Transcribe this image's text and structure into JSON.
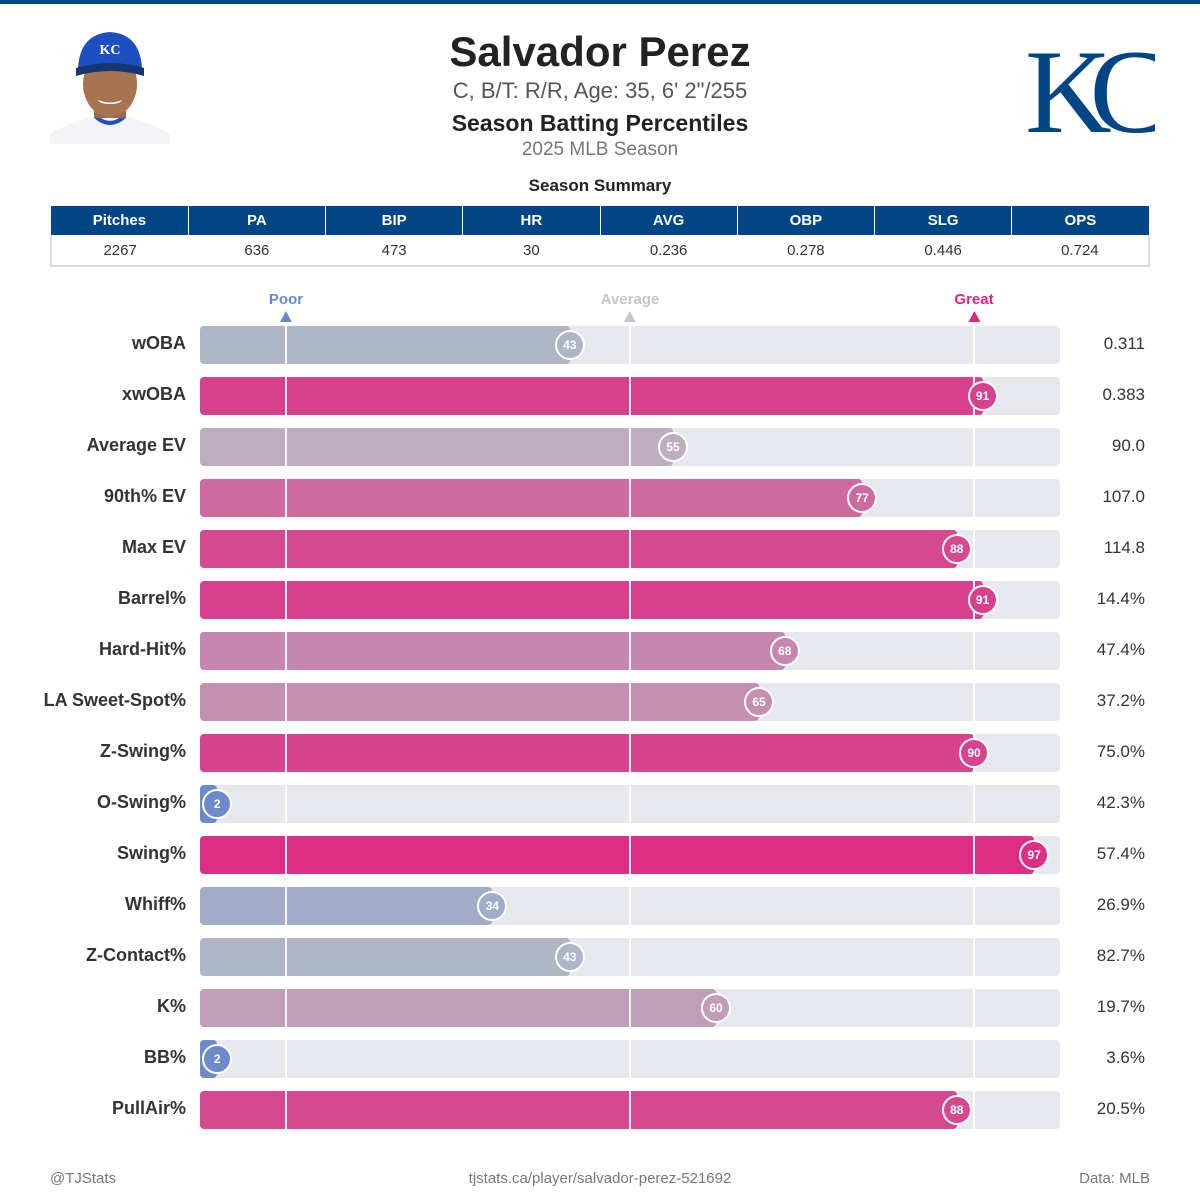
{
  "header": {
    "name": "Salvador Perez",
    "bio": "C, B/T: R/R, Age: 35, 6' 2\"/255",
    "subtitle": "Season Batting Percentiles",
    "season": "2025 MLB Season",
    "logo_text": "KC",
    "photo_cap_text": "KC"
  },
  "summary": {
    "title": "Season Summary",
    "headers": [
      "Pitches",
      "PA",
      "BIP",
      "HR",
      "AVG",
      "OBP",
      "SLG",
      "OPS"
    ],
    "values": [
      "2267",
      "636",
      "473",
      "30",
      "0.236",
      "0.278",
      "0.446",
      "0.724"
    ]
  },
  "colors": {
    "brand": "#004687",
    "poor": "#6a89cc",
    "average": "#b9bcc6",
    "great": "#de2580",
    "track": "#e7e8ee"
  },
  "chart_data": {
    "type": "bar",
    "orientation": "horizontal",
    "xlim": [
      0,
      100
    ],
    "reference_markers": [
      {
        "label": "Poor",
        "value": 10
      },
      {
        "label": "Average",
        "value": 50
      },
      {
        "label": "Great",
        "value": 90
      }
    ],
    "categories": [
      "wOBA",
      "xwOBA",
      "Average EV",
      "90th% EV",
      "Max EV",
      "Barrel%",
      "Hard-Hit%",
      "LA Sweet-Spot%",
      "Z-Swing%",
      "O-Swing%",
      "Swing%",
      "Whiff%",
      "Z-Contact%",
      "K%",
      "BB%",
      "PullAir%"
    ],
    "percentiles": [
      43,
      91,
      55,
      77,
      88,
      91,
      68,
      65,
      90,
      2,
      97,
      34,
      43,
      60,
      2,
      88
    ],
    "values": [
      "0.311",
      "0.383",
      "90.0",
      "107.0",
      "114.8",
      "14.4%",
      "47.4%",
      "37.2%",
      "75.0%",
      "42.3%",
      "57.4%",
      "26.9%",
      "82.7%",
      "19.7%",
      "3.6%",
      "20.5%"
    ]
  },
  "footer": {
    "handle": "@TJStats",
    "url": "tjstats.ca/player/salvador-perez-521692",
    "source": "Data: MLB"
  }
}
